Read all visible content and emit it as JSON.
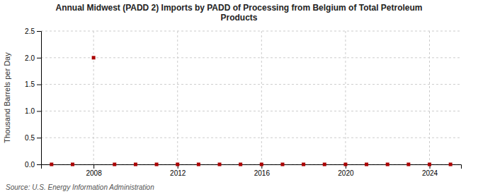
{
  "chart_data": {
    "type": "scatter",
    "title": "Annual Midwest (PADD 2) Imports by PADD of Processing from Belgium of Total Petroleum\nProducts",
    "y_label": "Thousand Barrels per Day",
    "annotations": [
      "Source: U.S. Energy Information Administration"
    ],
    "x": [
      2006,
      2007,
      2008,
      2009,
      2010,
      2011,
      2012,
      2013,
      2014,
      2015,
      2016,
      2017,
      2018,
      2019,
      2020,
      2021,
      2022,
      2023,
      2024,
      2025
    ],
    "values": [
      0,
      0,
      2.0,
      0,
      0,
      0,
      0,
      0,
      0,
      0,
      0,
      0,
      0,
      0,
      0,
      0,
      0,
      0,
      0,
      0
    ],
    "color": "#aa0000",
    "marker": "square",
    "xlim": [
      2005.5,
      2025.5
    ],
    "xticks": [
      2008,
      2012,
      2016,
      2020,
      2024
    ],
    "ylim": [
      0,
      2.5
    ],
    "yticks": [
      {
        "value": 0.0,
        "label": "0.0"
      },
      0.5,
      {
        "value": 1.0,
        "label": "1.0"
      },
      1.5,
      {
        "value": 2.0,
        "label": "2.0"
      },
      2.5
    ],
    "grid": true
  }
}
